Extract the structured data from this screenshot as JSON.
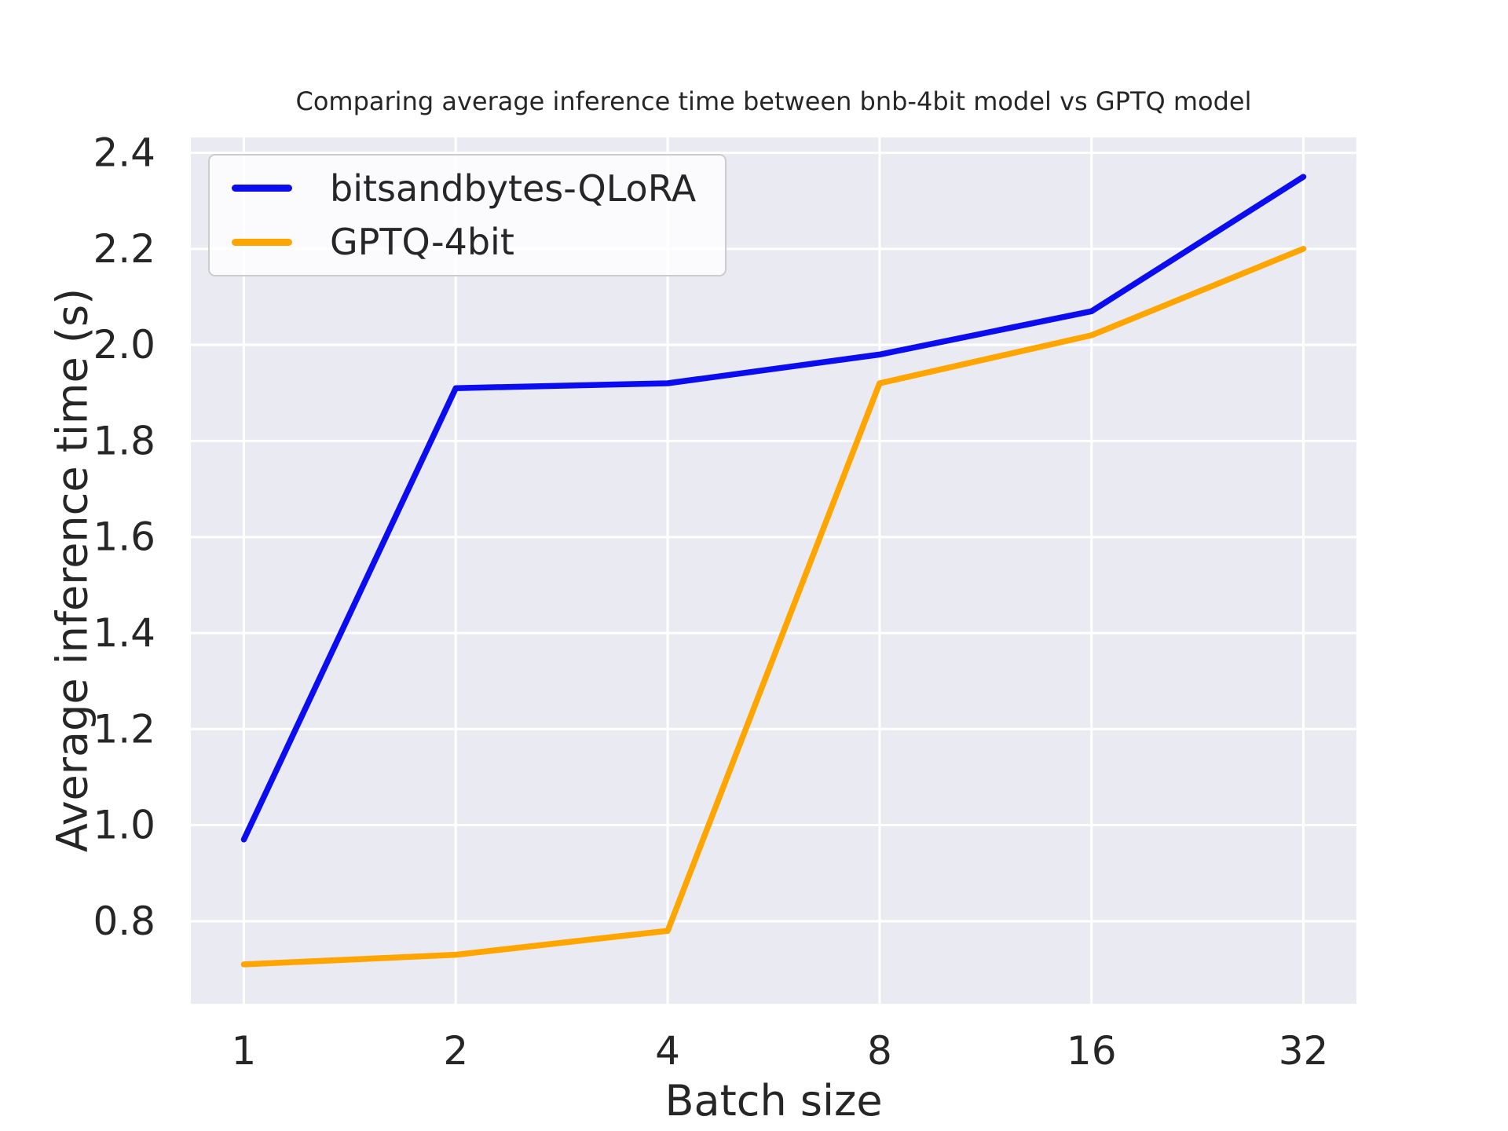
{
  "chart_data": {
    "type": "line",
    "title": "Comparing average inference time between bnb-4bit model vs GPTQ model",
    "xlabel": "Batch size",
    "ylabel": "Average inference time (s)",
    "categories": [
      "1",
      "2",
      "4",
      "8",
      "16",
      "32"
    ],
    "x_scale": "log2 (equal categorical spacing)",
    "series": [
      {
        "name": "bitsandbytes-QLoRA",
        "color": "#0c0cf0",
        "values": [
          0.97,
          1.91,
          1.92,
          1.98,
          2.07,
          2.35
        ]
      },
      {
        "name": "GPTQ-4bit",
        "color": "#ffa500",
        "values": [
          0.71,
          0.73,
          0.78,
          1.92,
          2.02,
          2.2
        ]
      }
    ],
    "yticks": [
      0.8,
      1.0,
      1.2,
      1.4,
      1.6,
      1.8,
      2.0,
      2.2,
      2.4
    ],
    "ylim": [
      0.628,
      2.432
    ],
    "grid": true,
    "legend_position": "upper left",
    "colors": {
      "plot_bg": "#eaeaf2",
      "grid": "#ffffff",
      "text": "#262626",
      "legend_bg": "rgba(255,255,255,0.8)",
      "legend_border": "#cccccc"
    }
  }
}
